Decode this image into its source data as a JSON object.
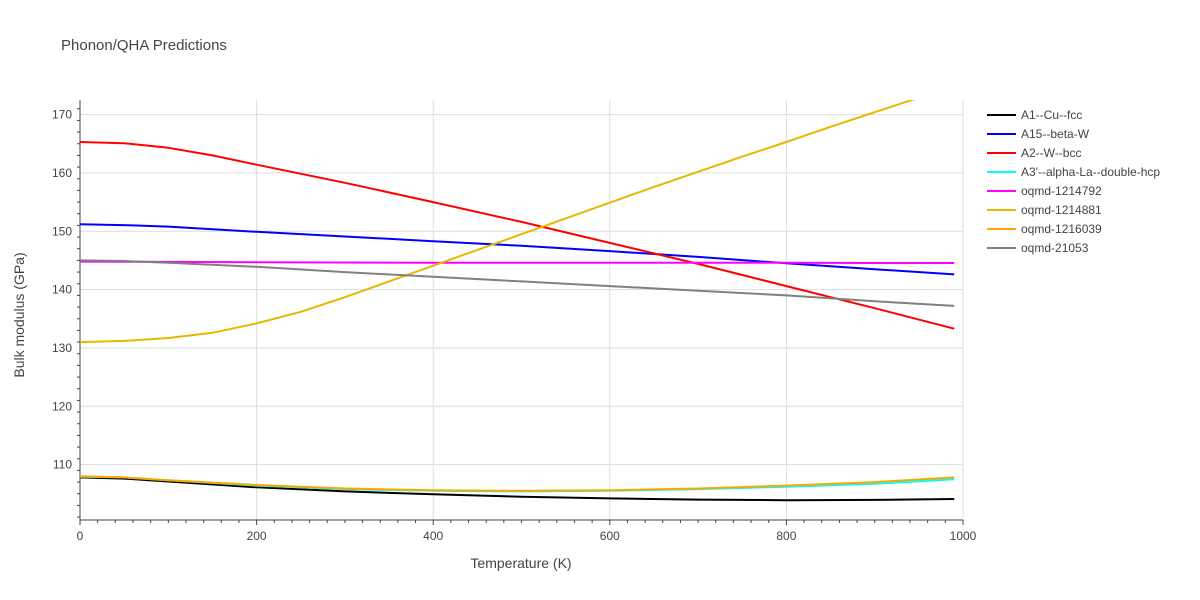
{
  "chart_data": {
    "type": "line",
    "title": "Phonon/QHA Predictions",
    "xlabel": "Temperature (K)",
    "ylabel": "Bulk modulus (GPa)",
    "xlim": [
      0,
      1000
    ],
    "ylim": [
      100.5,
      172.5
    ],
    "xticks": [
      0,
      200,
      400,
      600,
      800,
      1000
    ],
    "yticks": [
      110,
      120,
      130,
      140,
      150,
      160,
      170
    ],
    "grid": true,
    "legend_position": "right",
    "series": [
      {
        "name": "A1--Cu--fcc",
        "color": "#000000",
        "x": [
          0,
          50,
          100,
          200,
          300,
          400,
          500,
          600,
          700,
          800,
          900,
          990
        ],
        "y": [
          107.8,
          107.6,
          107.1,
          106.1,
          105.4,
          104.9,
          104.5,
          104.2,
          104.0,
          103.9,
          103.95,
          104.1
        ]
      },
      {
        "name": "A15--beta-W",
        "color": "#0000ff",
        "x": [
          0,
          60,
          100,
          200,
          300,
          400,
          500,
          600,
          700,
          800,
          900,
          990
        ],
        "y": [
          151.2,
          151.0,
          150.8,
          149.9,
          149.1,
          148.3,
          147.5,
          146.6,
          145.6,
          144.5,
          143.5,
          142.6
        ]
      },
      {
        "name": "A2--W--bcc",
        "color": "#ff0000",
        "x": [
          0,
          50,
          100,
          150,
          200,
          300,
          400,
          500,
          600,
          700,
          800,
          900,
          990
        ],
        "y": [
          165.3,
          165.1,
          164.3,
          163.0,
          161.4,
          158.3,
          155.0,
          151.6,
          148.0,
          144.4,
          140.6,
          136.8,
          133.3
        ]
      },
      {
        "name": "A3'--alpha-La--double-hcp",
        "color": "#00ffff",
        "x": [
          0,
          50,
          100,
          200,
          300,
          400,
          500,
          600,
          700,
          800,
          900,
          990
        ],
        "y": [
          107.9,
          107.8,
          107.3,
          106.4,
          105.8,
          105.5,
          105.4,
          105.5,
          105.8,
          106.2,
          106.7,
          107.5
        ]
      },
      {
        "name": "oqmd-1214792",
        "color": "#ff00ff",
        "x": [
          0,
          100,
          200,
          300,
          400,
          500,
          600,
          700,
          800,
          900,
          990
        ],
        "y": [
          144.8,
          144.75,
          144.7,
          144.65,
          144.6,
          144.6,
          144.6,
          144.6,
          144.6,
          144.55,
          144.55
        ]
      },
      {
        "name": "oqmd-1214881",
        "color": "#e6b800",
        "x": [
          0,
          50,
          100,
          150,
          200,
          250,
          300,
          350,
          400,
          450,
          500,
          550,
          600,
          650,
          700,
          750,
          800,
          850,
          900,
          950,
          990
        ],
        "y": [
          131.0,
          131.2,
          131.7,
          132.6,
          134.2,
          136.2,
          138.7,
          141.4,
          144.1,
          146.8,
          149.5,
          152.2,
          154.9,
          157.6,
          160.2,
          162.8,
          165.3,
          167.9,
          170.4,
          172.9,
          174.9
        ]
      },
      {
        "name": "oqmd-1216039",
        "color": "#ffa500",
        "x": [
          0,
          50,
          100,
          200,
          300,
          400,
          500,
          600,
          700,
          800,
          900,
          990
        ],
        "y": [
          108.0,
          107.8,
          107.3,
          106.5,
          105.9,
          105.6,
          105.5,
          105.6,
          105.9,
          106.4,
          107.0,
          107.8
        ]
      },
      {
        "name": "oqmd-21053",
        "color": "#808080",
        "x": [
          0,
          50,
          100,
          200,
          300,
          400,
          500,
          600,
          700,
          800,
          900,
          990
        ],
        "y": [
          145.0,
          144.9,
          144.6,
          143.9,
          143.0,
          142.2,
          141.4,
          140.6,
          139.8,
          139.0,
          138.0,
          137.2
        ]
      }
    ]
  }
}
